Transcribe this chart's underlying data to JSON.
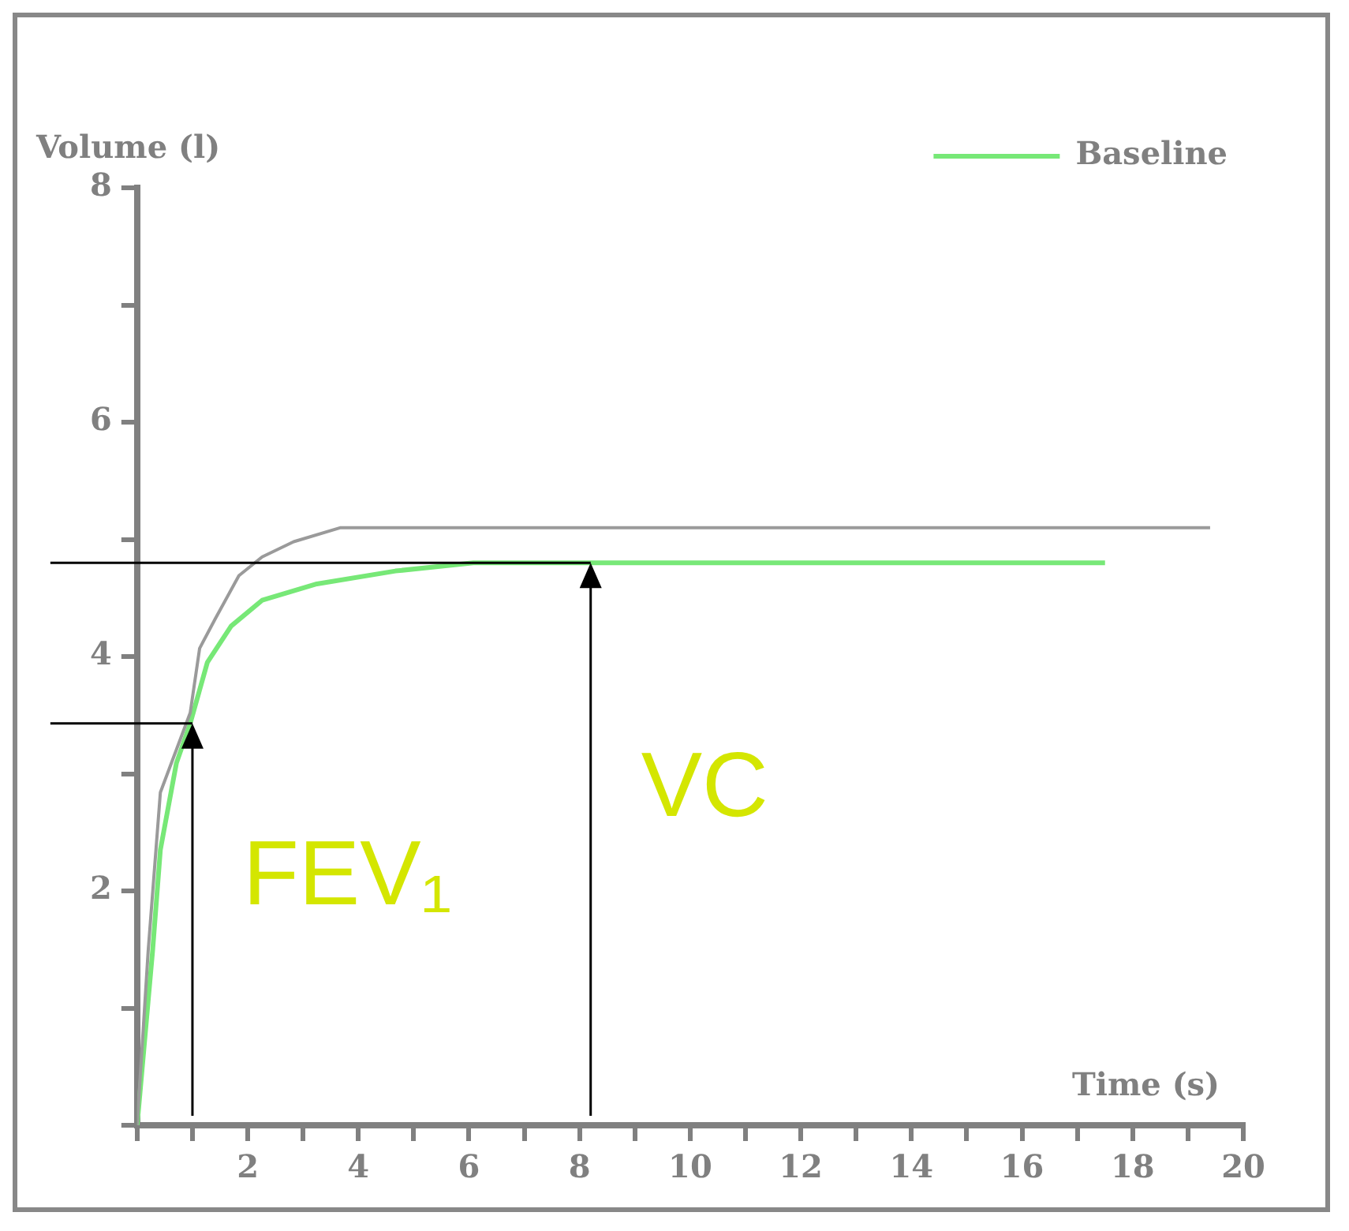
{
  "chart_data": {
    "type": "line",
    "xlabel": "Time (s)",
    "ylabel": "Volume (l)",
    "xlim": [
      0,
      20
    ],
    "ylim": [
      0,
      8
    ],
    "xticks": [
      {
        "value": 0,
        "label": null
      },
      {
        "value": 1,
        "label": null
      },
      2,
      {
        "value": 3,
        "label": null
      },
      4,
      {
        "value": 5,
        "label": null
      },
      6,
      {
        "value": 7,
        "label": null
      },
      8,
      {
        "value": 9,
        "label": null
      },
      10,
      {
        "value": 11,
        "label": null
      },
      12,
      {
        "value": 13,
        "label": null
      },
      14,
      {
        "value": 15,
        "label": null
      },
      16,
      {
        "value": 17,
        "label": null
      },
      18,
      {
        "value": 19,
        "label": null
      },
      20
    ],
    "yticks": [
      {
        "value": 0,
        "label": null
      },
      {
        "value": 1,
        "label": null
      },
      2,
      {
        "value": 3,
        "label": null
      },
      4,
      {
        "value": 5,
        "label": null
      },
      6,
      {
        "value": 7,
        "label": null
      },
      8
    ],
    "series": [
      {
        "color": "#9a9a9a",
        "x": [
          0,
          0.2,
          0.42,
          0.96,
          1.13,
          1.41,
          1.84,
          2.26,
          2.83,
          3.68,
          19.4
        ],
        "values": [
          0,
          1.49,
          2.84,
          3.52,
          4.07,
          4.32,
          4.69,
          4.85,
          4.98,
          5.1,
          5.1
        ]
      },
      {
        "name": "Baseline",
        "color": "#77e877",
        "x": [
          0,
          0.28,
          0.42,
          0.71,
          0.96,
          1.27,
          1.7,
          2.26,
          3.25,
          4.67,
          6.08,
          17.5
        ],
        "values": [
          0,
          1.49,
          2.35,
          3.09,
          3.43,
          3.95,
          4.26,
          4.48,
          4.62,
          4.73,
          4.8,
          4.8
        ]
      }
    ],
    "annotations": [
      {
        "text": "FEV₁",
        "x": 1,
        "y": 3.43
      },
      {
        "text": "VC",
        "x": 8.2,
        "y": 4.8
      }
    ],
    "legend": "top right",
    "grid": false,
    "marker": "none",
    "line_style": "solid"
  }
}
